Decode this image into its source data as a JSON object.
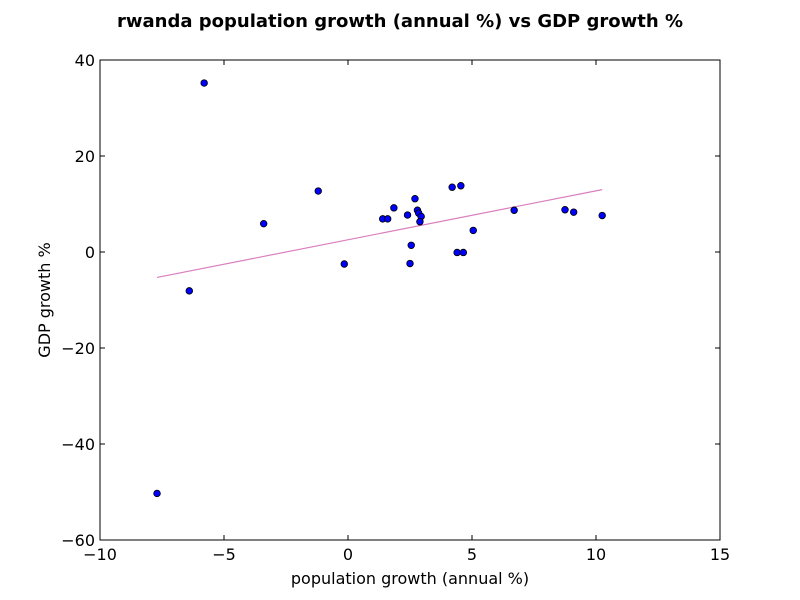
{
  "chart_data": {
    "type": "scatter",
    "title": "rwanda population growth (annual %) vs GDP growth %",
    "xlabel": "population growth (annual %)",
    "ylabel": "GDP growth %",
    "xlim": [
      -10,
      15
    ],
    "ylim": [
      -60,
      40
    ],
    "xticks": [
      -10,
      -5,
      0,
      5,
      10,
      15
    ],
    "yticks": [
      -60,
      -40,
      -20,
      0,
      20,
      40
    ],
    "xtick_labels": [
      "−10",
      "−5",
      "0",
      "5",
      "10",
      "15"
    ],
    "ytick_labels": [
      "−60",
      "−40",
      "−20",
      "0",
      "20",
      "40"
    ],
    "grid": false,
    "points": [
      {
        "x": -7.7,
        "y": -50.3
      },
      {
        "x": -5.8,
        "y": 35.2
      },
      {
        "x": -6.4,
        "y": -8.1
      },
      {
        "x": -3.4,
        "y": 5.9
      },
      {
        "x": -1.2,
        "y": 12.7
      },
      {
        "x": -0.15,
        "y": -2.5
      },
      {
        "x": 1.4,
        "y": 6.9
      },
      {
        "x": 1.6,
        "y": 6.9
      },
      {
        "x": 1.85,
        "y": 9.2
      },
      {
        "x": 2.4,
        "y": 7.7
      },
      {
        "x": 2.5,
        "y": -2.4
      },
      {
        "x": 2.55,
        "y": 1.4
      },
      {
        "x": 2.7,
        "y": 11.1
      },
      {
        "x": 2.8,
        "y": 8.7
      },
      {
        "x": 2.85,
        "y": 8.1
      },
      {
        "x": 2.95,
        "y": 7.4
      },
      {
        "x": 2.9,
        "y": 6.3
      },
      {
        "x": 4.2,
        "y": 13.5
      },
      {
        "x": 4.4,
        "y": -0.1
      },
      {
        "x": 4.55,
        "y": 13.8
      },
      {
        "x": 4.65,
        "y": -0.1
      },
      {
        "x": 5.05,
        "y": 4.5
      },
      {
        "x": 6.7,
        "y": 8.7
      },
      {
        "x": 8.75,
        "y": 8.8
      },
      {
        "x": 9.1,
        "y": 8.3
      },
      {
        "x": 10.25,
        "y": 7.6
      }
    ],
    "trendline": {
      "x": [
        -7.7,
        10.25
      ],
      "y": [
        -5.3,
        13.0
      ]
    },
    "colors": {
      "point_fill": "#0000ff",
      "point_stroke": "#000000",
      "trendline": "#d97fbf",
      "axes": "#000000"
    }
  }
}
